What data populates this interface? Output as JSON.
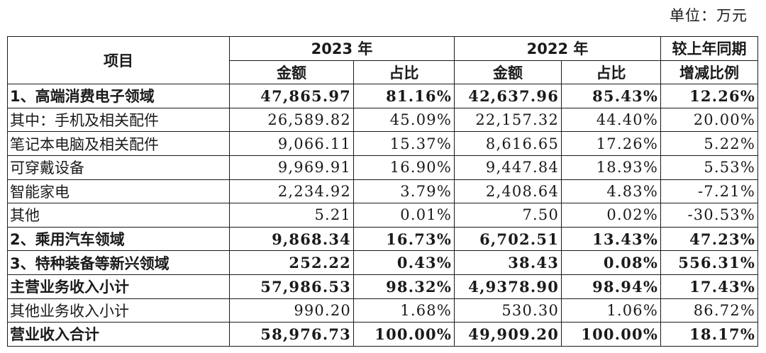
{
  "unit_label": "单位：万元",
  "header": {
    "item": "项目",
    "year1": "2023 年",
    "year2": "2022 年",
    "change_line1": "较上年同期",
    "change_line2": "增减比例",
    "amount": "金额",
    "ratio": "占比"
  },
  "rows": [
    {
      "label": "1、高端消费电子领域",
      "amt23": "47,865.97",
      "pct23": "81.16%",
      "amt22": "42,637.96",
      "pct22": "85.43%",
      "change": "12.26%",
      "bold": true
    },
    {
      "label": "其中：手机及相关配件",
      "amt23": "26,589.82",
      "pct23": "45.09%",
      "amt22": "22,157.32",
      "pct22": "44.40%",
      "change": "20.00%",
      "bold": false
    },
    {
      "label": "笔记本电脑及相关配件",
      "amt23": "9,066.11",
      "pct23": "15.37%",
      "amt22": "8,616.65",
      "pct22": "17.26%",
      "change": "5.22%",
      "bold": false
    },
    {
      "label": "可穿戴设备",
      "amt23": "9,969.91",
      "pct23": "16.90%",
      "amt22": "9,447.84",
      "pct22": "18.93%",
      "change": "5.53%",
      "bold": false
    },
    {
      "label": "智能家电",
      "amt23": "2,234.92",
      "pct23": "3.79%",
      "amt22": "2,408.64",
      "pct22": "4.83%",
      "change": "-7.21%",
      "bold": false
    },
    {
      "label": "其他",
      "amt23": "5.21",
      "pct23": "0.01%",
      "amt22": "7.50",
      "pct22": "0.02%",
      "change": "-30.53%",
      "bold": false
    },
    {
      "label": "2、乘用汽车领域",
      "amt23": "9,868.34",
      "pct23": "16.73%",
      "amt22": "6,702.51",
      "pct22": "13.43%",
      "change": "47.23%",
      "bold": true
    },
    {
      "label": "3、特种装备等新兴领域",
      "amt23": "252.22",
      "pct23": "0.43%",
      "amt22": "38.43",
      "pct22": "0.08%",
      "change": "556.31%",
      "bold": true
    },
    {
      "label": "主营业务收入小计",
      "amt23": "57,986.53",
      "pct23": "98.32%",
      "amt22": "4,9378.90",
      "pct22": "98.94%",
      "change": "17.43%",
      "bold": true
    },
    {
      "label": "其他业务收入小计",
      "amt23": "990.20",
      "pct23": "1.68%",
      "amt22": "530.30",
      "pct22": "1.06%",
      "change": "86.72%",
      "bold": false
    },
    {
      "label": "营业收入合计",
      "amt23": "58,976.73",
      "pct23": "100.00%",
      "amt22": "49,909.20",
      "pct22": "100.00%",
      "change": "18.17%",
      "bold": true
    }
  ]
}
